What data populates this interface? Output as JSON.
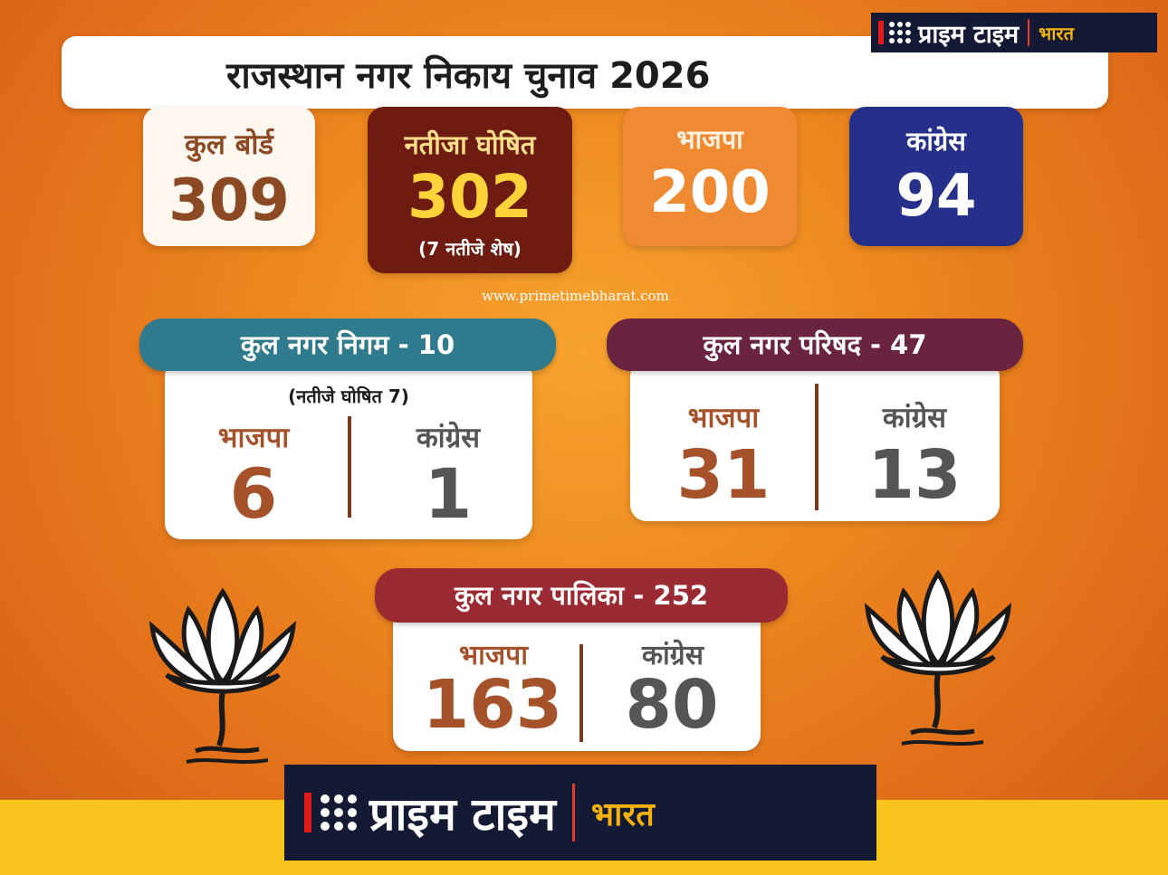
{
  "title": "राजस्थान नगर निकाय चुनाव 2026",
  "brand": {
    "main": "प्राइम टाइम",
    "sub": "भारत"
  },
  "website": "www.primetimebharat.com",
  "summary": {
    "total_boards": {
      "label": "कुल बोर्ड",
      "value": "309"
    },
    "results_declared": {
      "label": "नतीजा घोषित",
      "value": "302",
      "note": "(7 नतीजे शेष)"
    },
    "bjp": {
      "label": "भाजपा",
      "value": "200"
    },
    "congress": {
      "label": "कांग्रेस",
      "value": "94"
    }
  },
  "nagar_nigam": {
    "header": "कुल नगर निगम - 10",
    "note": "(नतीजे घोषित 7)",
    "bjp": {
      "label": "भाजपा",
      "value": "6"
    },
    "congress": {
      "label": "कांग्रेस",
      "value": "1"
    }
  },
  "nagar_parishad": {
    "header": "कुल नगर परिषद - 47",
    "bjp": {
      "label": "भाजपा",
      "value": "31"
    },
    "congress": {
      "label": "कांग्रेस",
      "value": "13"
    }
  },
  "nagar_palika": {
    "header": "कुल नगर पालिका - 252",
    "bjp": {
      "label": "भाजपा",
      "value": "163"
    },
    "congress": {
      "label": "कांग्रेस",
      "value": "80"
    }
  },
  "colors": {
    "bjp_brown": "#a5522a",
    "congress_gray": "#555555",
    "congress_blue": "#25308a",
    "results_maroon": "#6e1b12",
    "bjp_orange": "#ef8a32",
    "logo_navy": "#141a33",
    "band_yellow": "#f7c51b"
  },
  "icons": {
    "left": "lotus-icon",
    "right": "lotus-icon"
  }
}
